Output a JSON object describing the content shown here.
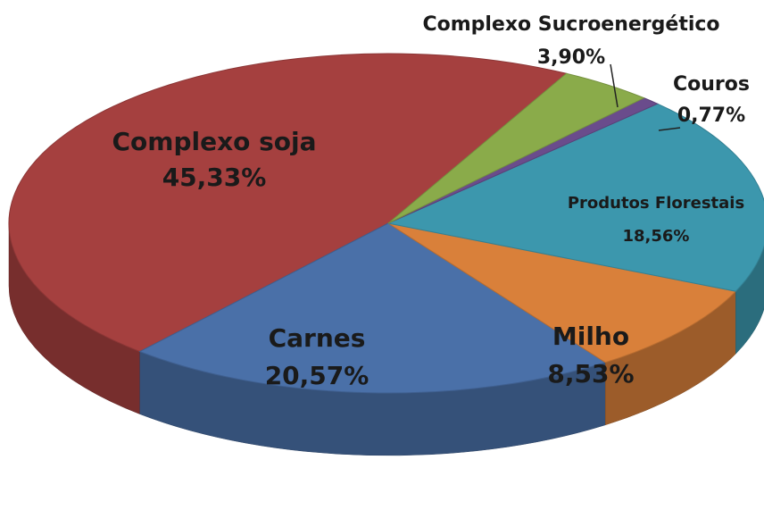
{
  "chart_data": {
    "type": "pie",
    "categories": [
      "Complexo soja",
      "Carnes",
      "Milho",
      "Produtos Florestais",
      "Couros",
      "Complexo Sucroenergético"
    ],
    "values": [
      45.33,
      20.57,
      8.53,
      18.56,
      0.77,
      3.9
    ],
    "value_labels": [
      "45,33%",
      "20,57%",
      "8,53%",
      "18,56%",
      "0,77%",
      "3,90%"
    ],
    "colors": [
      "#a5403f",
      "#4a70a8",
      "#d9803a",
      "#3c97ad",
      "#6a4c8c",
      "#8aab4a"
    ]
  }
}
